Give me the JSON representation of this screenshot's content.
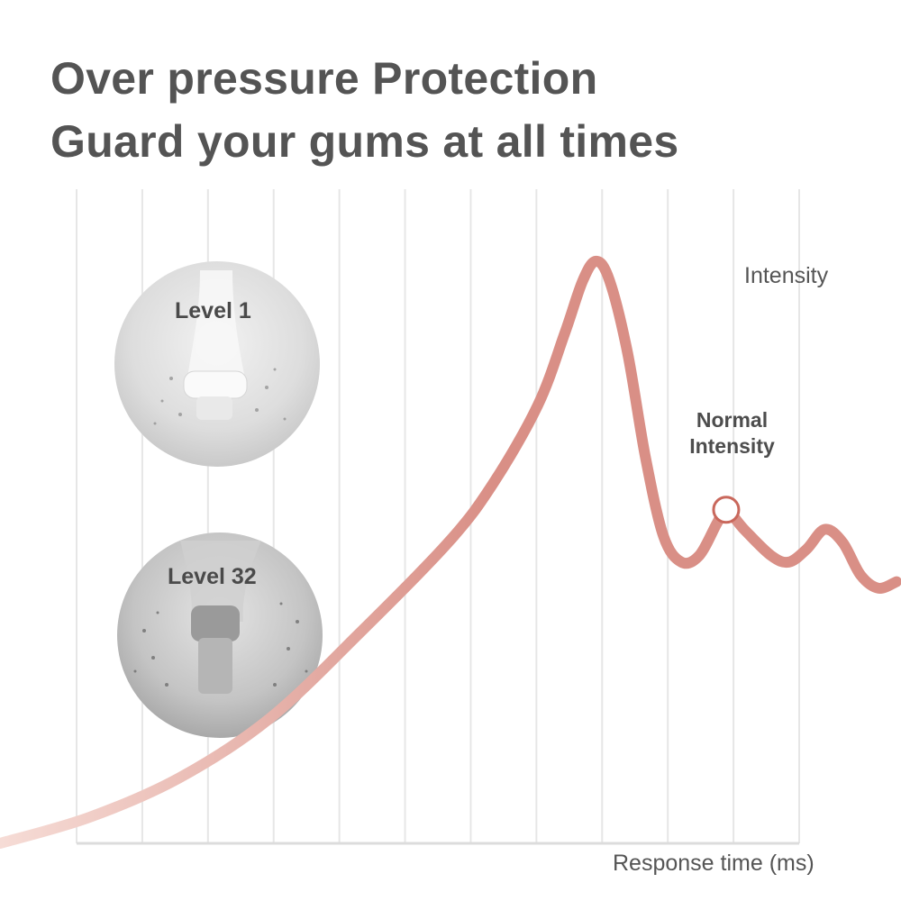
{
  "header": {
    "line1": "Over pressure Protection",
    "line2": "Guard your gums at all times"
  },
  "levels": [
    {
      "label": "Level 1",
      "icon": "gentle-water-jet-photo"
    },
    {
      "label": "Level 32",
      "icon": "strong-water-jet-photo"
    }
  ],
  "chart_data": {
    "type": "line",
    "title": "",
    "xlabel": "Response time (ms)",
    "ylabel": "Intensity",
    "xlim": [
      0,
      100
    ],
    "ylim": [
      0,
      100
    ],
    "grid": "vertical",
    "annotation": {
      "lines": [
        "Normal",
        "Intensity"
      ],
      "point": {
        "x": 81,
        "y": 51
      }
    },
    "series": [
      {
        "color": "#d98f86",
        "fade_color": "#f6dcd6",
        "points": [
          [
            0,
            0
          ],
          [
            10,
            4
          ],
          [
            20,
            10
          ],
          [
            30,
            19
          ],
          [
            40,
            32
          ],
          [
            50,
            46
          ],
          [
            55,
            55
          ],
          [
            60,
            67
          ],
          [
            63,
            78
          ],
          [
            65,
            86
          ],
          [
            66.5,
            89
          ],
          [
            68,
            86
          ],
          [
            70,
            75
          ],
          [
            72,
            59
          ],
          [
            74,
            47
          ],
          [
            76,
            43
          ],
          [
            78,
            44
          ],
          [
            80,
            49
          ],
          [
            81,
            51
          ],
          [
            83,
            48
          ],
          [
            86,
            44
          ],
          [
            88,
            43
          ],
          [
            90,
            45
          ],
          [
            92,
            48
          ],
          [
            94,
            46
          ],
          [
            96,
            41
          ],
          [
            98,
            39
          ],
          [
            100,
            40
          ]
        ]
      }
    ]
  }
}
